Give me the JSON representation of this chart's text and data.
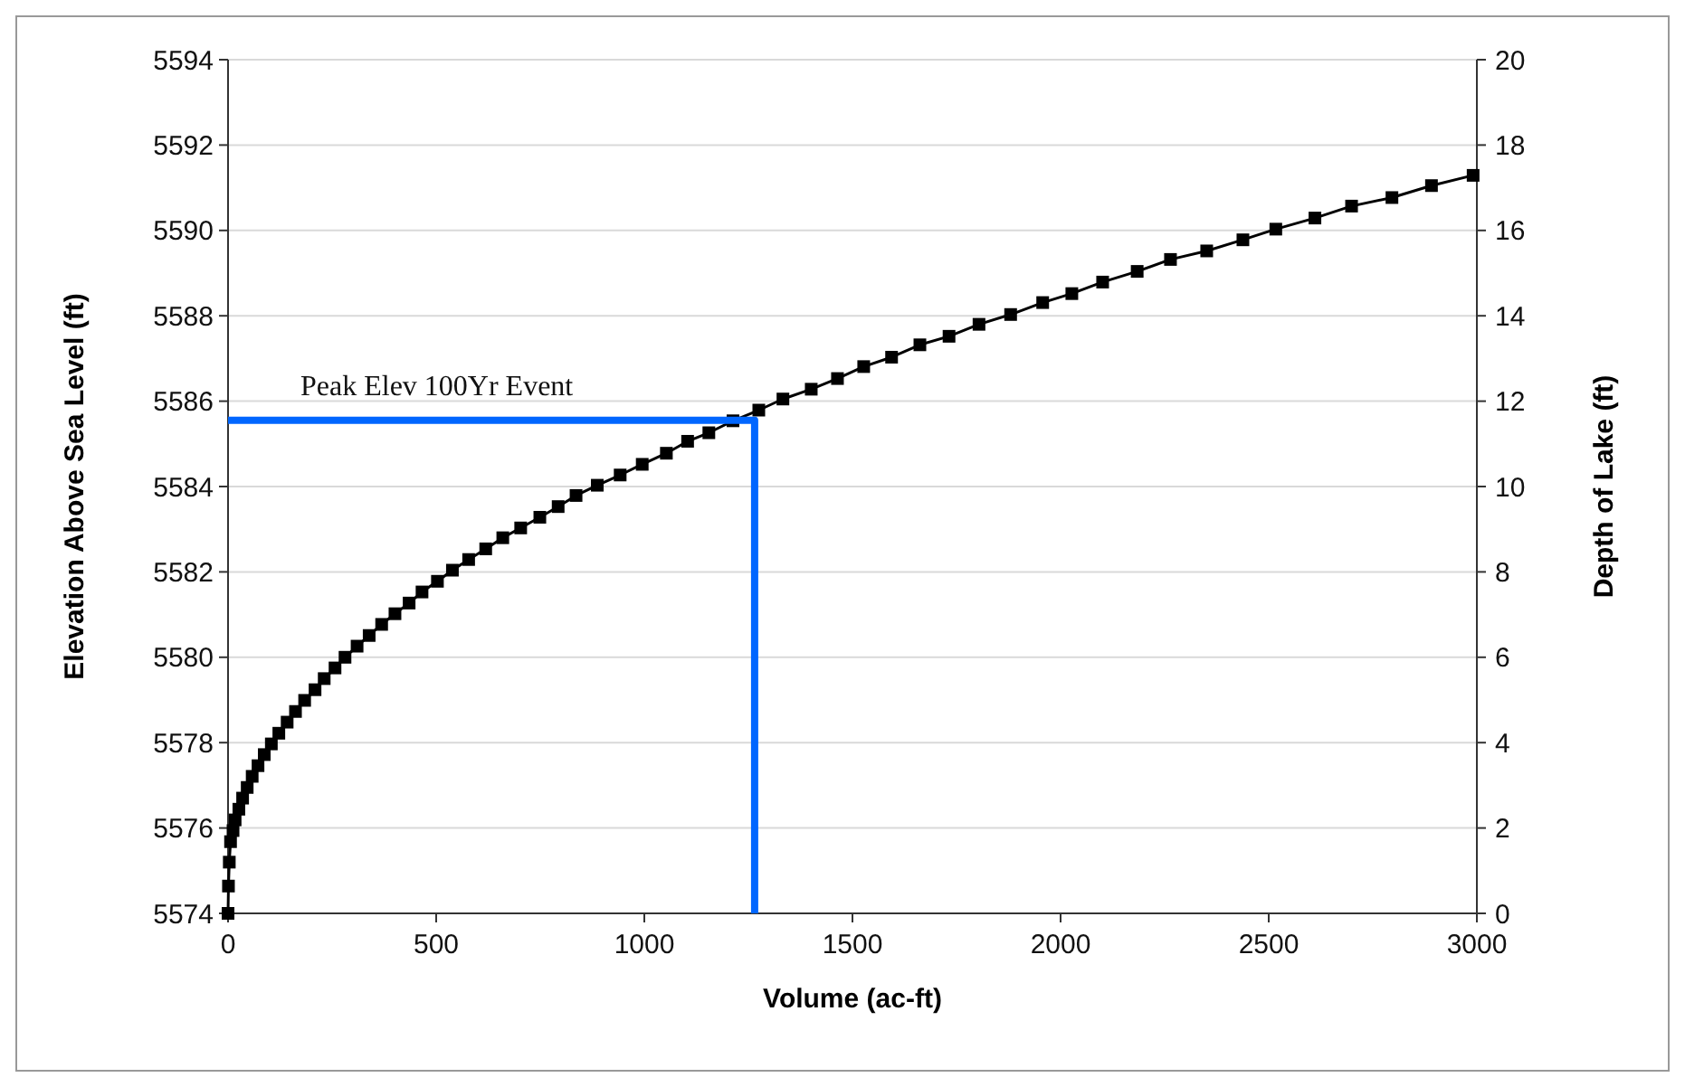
{
  "chart_data": {
    "type": "line",
    "xlabel": "Volume (ac-ft)",
    "ylabel": "Elevation Above Sea Level (ft)",
    "y2label": "Depth of Lake (ft)",
    "xlim": [
      0,
      3000
    ],
    "xticks": [
      0,
      500,
      1000,
      1500,
      2000,
      2500,
      3000
    ],
    "ylim": [
      5574,
      5594
    ],
    "yticks": [
      5574,
      5576,
      5578,
      5580,
      5582,
      5584,
      5586,
      5588,
      5590,
      5592,
      5594
    ],
    "y2lim": [
      0,
      20
    ],
    "y2ticks": [
      0,
      2,
      4,
      6,
      8,
      10,
      12,
      14,
      16,
      18,
      20
    ],
    "grid": "y",
    "series": [
      {
        "color": "#000000",
        "marker": "square",
        "x": [
          0,
          1,
          3,
          6,
          12,
          17,
          26,
          35,
          46,
          58,
          72,
          87,
          104,
          122,
          142,
          162,
          184,
          209,
          231,
          257,
          281,
          310,
          339,
          369,
          401,
          435,
          466,
          503,
          539,
          578,
          619,
          660,
          703,
          749,
          793,
          836,
          887,
          942,
          995,
          1053,
          1104,
          1155,
          1213,
          1275,
          1333,
          1401,
          1464,
          1527,
          1594,
          1662,
          1732,
          1804,
          1880,
          1957,
          2027,
          2101,
          2184,
          2264,
          2351,
          2438,
          2517,
          2611,
          2699,
          2796,
          2891,
          2991
        ],
        "values": [
          5574,
          5574.64,
          5575.2,
          5575.68,
          5575.94,
          5576.19,
          5576.44,
          5576.7,
          5576.95,
          5577.21,
          5577.46,
          5577.72,
          5577.97,
          5578.22,
          5578.48,
          5578.73,
          5578.99,
          5579.24,
          5579.5,
          5579.75,
          5580,
          5580.26,
          5580.51,
          5580.77,
          5581.02,
          5581.27,
          5581.53,
          5581.78,
          5582.04,
          5582.29,
          5582.54,
          5582.8,
          5583.03,
          5583.28,
          5583.53,
          5583.79,
          5584.03,
          5584.27,
          5584.52,
          5584.78,
          5585.06,
          5585.26,
          5585.54,
          5585.79,
          5586.05,
          5586.28,
          5586.53,
          5586.81,
          5587.03,
          5587.32,
          5587.52,
          5587.8,
          5588.03,
          5588.31,
          5588.52,
          5588.79,
          5589.04,
          5589.32,
          5589.52,
          5589.78,
          5590.03,
          5590.29,
          5590.57,
          5590.77,
          5591.05,
          5591.29
        ]
      },
      {
        "color": "#0066ff",
        "marker": "none",
        "x": [
          0,
          1265,
          1265
        ],
        "values": [
          5585.55,
          5585.55,
          5574
        ]
      }
    ],
    "annotations": [
      "Peak Elev 100Yr Event"
    ]
  }
}
